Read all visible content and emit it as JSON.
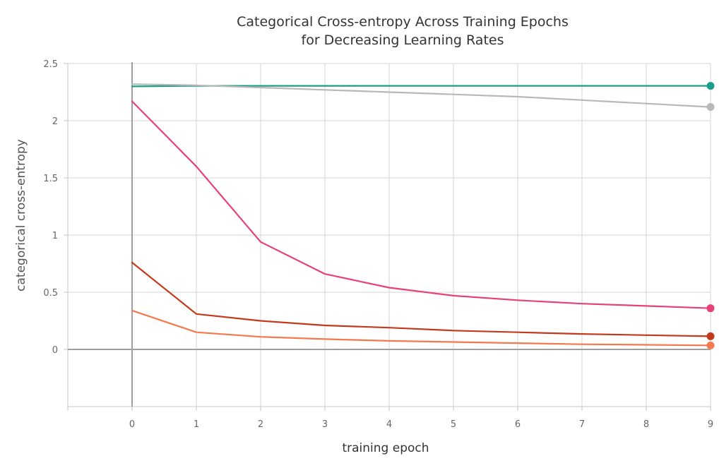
{
  "chart_data": {
    "type": "line",
    "title_lines": [
      "Categorical Cross-entropy Across Training Epochs",
      "for Decreasing Learning Rates"
    ],
    "xlabel": "training epoch",
    "ylabel": "categorical cross-entropy",
    "x": [
      0,
      1,
      2,
      3,
      4,
      5,
      6,
      7,
      8,
      9
    ],
    "x_ticks": [
      "0",
      "1",
      "2",
      "3",
      "4",
      "5",
      "6",
      "7",
      "8",
      "9"
    ],
    "y_ticks": [
      {
        "value": 0,
        "label": "0"
      },
      {
        "value": 0.5,
        "label": "0.5"
      },
      {
        "value": 1,
        "label": "1"
      },
      {
        "value": 1.5,
        "label": "1.5"
      },
      {
        "value": 2,
        "label": "2"
      },
      {
        "value": 2.5,
        "label": "2.5"
      }
    ],
    "xlim": [
      -1,
      9
    ],
    "ylim": [
      -0.5,
      2.5
    ],
    "grid": true,
    "legend": "none",
    "series": [
      {
        "color": "#1a9e8a",
        "values": [
          2.3,
          2.305,
          2.305,
          2.305,
          2.305,
          2.305,
          2.305,
          2.305,
          2.305,
          2.305
        ]
      },
      {
        "color": "#b8b8b8",
        "values": [
          2.32,
          2.31,
          2.29,
          2.27,
          2.25,
          2.23,
          2.21,
          2.18,
          2.15,
          2.12
        ]
      },
      {
        "color": "#e8407a",
        "values": [
          2.17,
          1.6,
          0.94,
          0.66,
          0.54,
          0.47,
          0.43,
          0.4,
          0.38,
          0.36
        ]
      },
      {
        "color": "#c23a1a",
        "values": [
          0.76,
          0.31,
          0.25,
          0.21,
          0.19,
          0.165,
          0.15,
          0.135,
          0.125,
          0.115
        ]
      },
      {
        "color": "#f5794e",
        "values": [
          0.34,
          0.15,
          0.11,
          0.09,
          0.075,
          0.065,
          0.055,
          0.045,
          0.04,
          0.035
        ]
      }
    ]
  }
}
